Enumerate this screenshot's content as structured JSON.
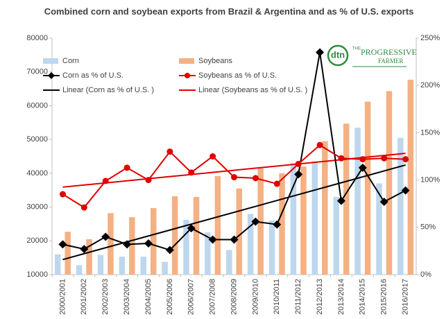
{
  "chart_data": {
    "type": "bar-line",
    "title": "Combined corn and soybean exports from Brazil & Argentina and as % of U.S. exports",
    "categories": [
      "2000/2001",
      "2001/2002",
      "2002/2003",
      "2003/2004",
      "2004/2005",
      "2005/2006",
      "2006/2007",
      "2007/2008",
      "2008/2009",
      "2009/2010",
      "2010/2011",
      "2011/2012",
      "2012/2013",
      "2013/2014",
      "2014/2015",
      "2015/2016",
      "2016/2017"
    ],
    "series": [
      {
        "name": "Corn",
        "kind": "bar",
        "color": "#bdd7ee",
        "values": [
          16000,
          12800,
          15800,
          15300,
          15300,
          13800,
          26200,
          22500,
          17300,
          28000,
          26000,
          43000,
          43500,
          33000,
          53500,
          37000,
          50500
        ]
      },
      {
        "name": "Soybeans",
        "kind": "bar",
        "color": "#f4b183",
        "values": [
          22700,
          20500,
          28200,
          27000,
          29700,
          33200,
          33000,
          39200,
          35500,
          41500,
          40000,
          42000,
          49500,
          54700,
          61200,
          64300,
          67700
        ]
      },
      {
        "name": "Corn as % of U.S.",
        "kind": "line",
        "axis": "y2",
        "marker": "diamond",
        "color": "#000000",
        "values": [
          32,
          27,
          40,
          32,
          33,
          26,
          49,
          37,
          37,
          56,
          53,
          106,
          235,
          78,
          113,
          77,
          89
        ]
      },
      {
        "name": "Soybeans as % of U.S.",
        "kind": "line",
        "axis": "y2",
        "marker": "circle",
        "color": "#e00000",
        "values": [
          85,
          71,
          99,
          113,
          100,
          130,
          108,
          125,
          103,
          102,
          96,
          117,
          137,
          123,
          122,
          123,
          122
        ]
      }
    ],
    "trendlines": [
      {
        "name": "Linear (Corn as % of U.S. )",
        "of": 2,
        "color": "#000000"
      },
      {
        "name": "Linear (Soybeans as % of U.S.  )",
        "of": 3,
        "color": "#e00000"
      }
    ],
    "ylim": [
      10000,
      80000
    ],
    "yticks": [
      10000,
      20000,
      30000,
      40000,
      50000,
      60000,
      70000,
      80000
    ],
    "y2lim": [
      0,
      250
    ],
    "y2ticks": [
      {
        "value": 0,
        "label": "0%"
      },
      {
        "value": 50,
        "label": "50%"
      },
      {
        "value": 100,
        "label": "100%"
      },
      {
        "value": 150,
        "label": "150%"
      },
      {
        "value": 200,
        "label": "200%"
      },
      {
        "value": 250,
        "label": "250%"
      }
    ],
    "logo": {
      "mark": "dtn",
      "prefix": "THE",
      "name": "PROGRESSIVE",
      "suffix": "FARMER"
    }
  }
}
